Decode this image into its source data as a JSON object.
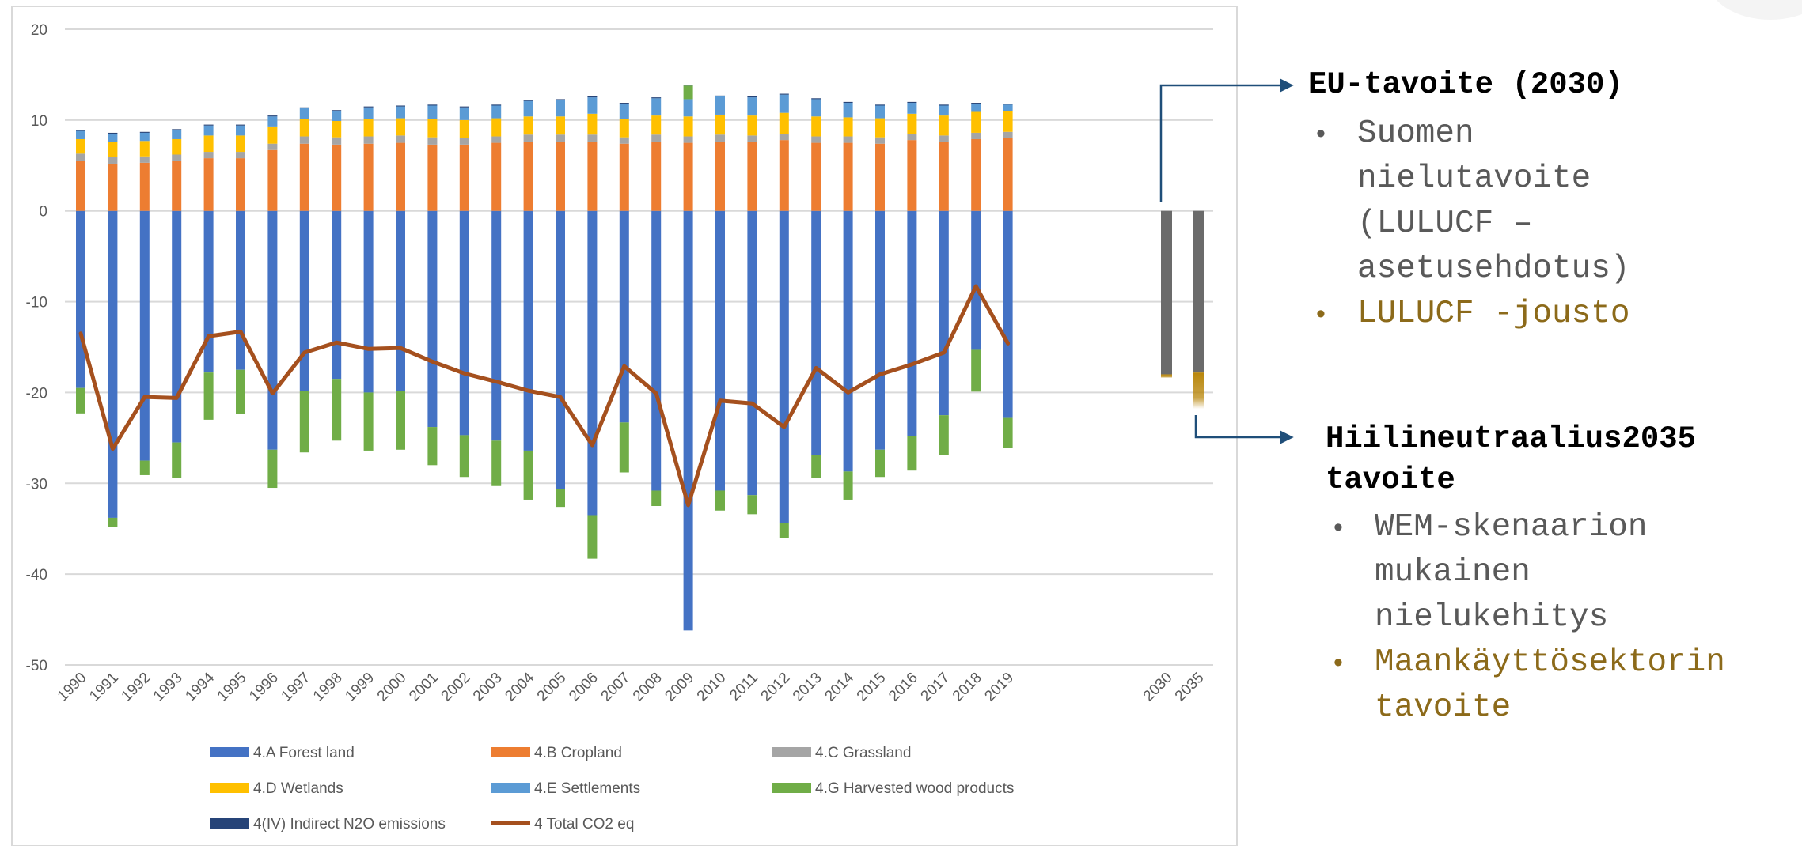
{
  "colors": {
    "forest": "#4472C4",
    "cropland": "#ED7D31",
    "grassland": "#A5A5A5",
    "wetlands": "#FFC000",
    "settlements": "#5B9BD5",
    "hwp": "#70AD47",
    "indirect_n2o": "#264478",
    "total": "#A5501E",
    "target_bar": "#6b6b6b",
    "target_flex": "#b8860b",
    "arrow": "#1f4e79",
    "grid": "#d9d9d9",
    "axis_text": "#595959"
  },
  "chart_data": {
    "type": "bar",
    "stacked": true,
    "ylim": [
      -50,
      20
    ],
    "yticks": [
      20,
      10,
      0,
      -10,
      -20,
      -30,
      -40,
      -50
    ],
    "grid": true,
    "legend_position": "bottom",
    "categories": [
      "1990",
      "1991",
      "1992",
      "1993",
      "1994",
      "1995",
      "1996",
      "1997",
      "1998",
      "1999",
      "2000",
      "2001",
      "2002",
      "2003",
      "2004",
      "2005",
      "2006",
      "2007",
      "2008",
      "2009",
      "2010",
      "2011",
      "2012",
      "2013",
      "2014",
      "2015",
      "2016",
      "2017",
      "2018",
      "2019"
    ],
    "series": [
      {
        "name": "4.A Forest land",
        "color_key": "forest",
        "values": [
          -19.5,
          -33.8,
          -27.5,
          -25.5,
          -17.8,
          -17.5,
          -26.3,
          -19.8,
          -18.5,
          -20,
          -19.8,
          -23.8,
          -24.7,
          -25.3,
          -26.4,
          -30.6,
          -33.5,
          -23.3,
          -30.8,
          -46.2,
          -30.8,
          -31.3,
          -34.4,
          -26.9,
          -28.7,
          -26.3,
          -24.8,
          -22.5,
          -15.3,
          -22.8
        ]
      },
      {
        "name": "4.B Cropland",
        "color_key": "cropland",
        "values": [
          5.5,
          5.2,
          5.3,
          5.5,
          5.8,
          5.8,
          6.7,
          7.4,
          7.3,
          7.4,
          7.5,
          7.3,
          7.3,
          7.5,
          7.6,
          7.6,
          7.6,
          7.4,
          7.6,
          7.5,
          7.6,
          7.6,
          7.8,
          7.5,
          7.5,
          7.4,
          7.8,
          7.6,
          7.9,
          8
        ]
      },
      {
        "name": "4.C Grassland",
        "color_key": "grassland",
        "values": [
          0.8,
          0.7,
          0.7,
          0.7,
          0.7,
          0.7,
          0.7,
          0.8,
          0.8,
          0.8,
          0.8,
          0.8,
          0.7,
          0.7,
          0.8,
          0.8,
          0.8,
          0.7,
          0.8,
          0.7,
          0.8,
          0.7,
          0.7,
          0.7,
          0.7,
          0.7,
          0.7,
          0.7,
          0.7,
          0.7
        ]
      },
      {
        "name": "4.D Wetlands",
        "color_key": "wetlands",
        "values": [
          1.6,
          1.7,
          1.7,
          1.7,
          1.8,
          1.8,
          1.9,
          1.9,
          1.8,
          1.9,
          1.9,
          2,
          2,
          2,
          2,
          2,
          2.3,
          2,
          2.1,
          2.2,
          2.2,
          2.2,
          2.3,
          2.2,
          2.1,
          2.1,
          2.2,
          2.2,
          2.3,
          2.3
        ]
      },
      {
        "name": "4.E Settlements",
        "color_key": "settlements",
        "values": [
          0.9,
          0.9,
          0.9,
          1,
          1.1,
          1.1,
          1.1,
          1.2,
          1.1,
          1.3,
          1.3,
          1.5,
          1.4,
          1.4,
          1.7,
          1.8,
          1.8,
          1.7,
          1.9,
          1.9,
          2,
          2,
          2,
          1.9,
          1.6,
          1.4,
          1.2,
          1.1,
          0.9,
          0.7
        ]
      },
      {
        "name": "4.G Harvested wood products",
        "color_key": "hwp",
        "values": [
          -2.8,
          -1,
          -1.6,
          -3.9,
          -5.2,
          -4.9,
          -4.2,
          -6.8,
          -6.8,
          -6.4,
          -6.5,
          -4.2,
          -4.6,
          -5,
          -5.4,
          -2,
          -4.8,
          -5.5,
          -1.7,
          1.5,
          -2.2,
          -2.1,
          -1.6,
          -2.5,
          -3.1,
          -3,
          -3.8,
          -4.4,
          -4.6,
          -3.3
        ]
      },
      {
        "name": "4(IV) Indirect N2O emissions",
        "color_key": "indirect_n2o",
        "values": [
          0.1,
          0.1,
          0.1,
          0.1,
          0.1,
          0.1,
          0.1,
          0.1,
          0.1,
          0.1,
          0.1,
          0.1,
          0.1,
          0.1,
          0.1,
          0.1,
          0.1,
          0.1,
          0.1,
          0.1,
          0.1,
          0.1,
          0.1,
          0.1,
          0.1,
          0.1,
          0.1,
          0.1,
          0.1,
          0.1
        ]
      }
    ],
    "line": {
      "name": "4 Total CO2 eq",
      "color_key": "total",
      "values": [
        -13.5,
        -26.2,
        -20.5,
        -20.6,
        -13.8,
        -13.3,
        -20.1,
        -15.6,
        -14.5,
        -15.2,
        -15.1,
        -16.6,
        -17.9,
        -18.8,
        -19.8,
        -20.5,
        -25.8,
        -17.1,
        -20.1,
        -32.4,
        -20.9,
        -21.2,
        -23.8,
        -17.3,
        -20,
        -18,
        -16.9,
        -15.6,
        -8.3,
        -14.6
      ]
    },
    "target_categories": [
      "2030",
      "2035"
    ],
    "targets": [
      {
        "category": "2030",
        "base": -18,
        "flex": -0.4
      },
      {
        "category": "2035",
        "base": -17.8,
        "flex": -4
      }
    ]
  },
  "legend": [
    {
      "label": "4.A Forest land",
      "color_key": "forest",
      "kind": "box"
    },
    {
      "label": "4.B Cropland",
      "color_key": "cropland",
      "kind": "box"
    },
    {
      "label": "4.C Grassland",
      "color_key": "grassland",
      "kind": "box"
    },
    {
      "label": "4.D Wetlands",
      "color_key": "wetlands",
      "kind": "box"
    },
    {
      "label": "4.E Settlements",
      "color_key": "settlements",
      "kind": "box"
    },
    {
      "label": "4.G Harvested wood products",
      "color_key": "hwp",
      "kind": "box"
    },
    {
      "label": "4(IV) Indirect N2O emissions",
      "color_key": "indirect_n2o",
      "kind": "box"
    },
    {
      "label": "4 Total CO2 eq",
      "color_key": "total",
      "kind": "line"
    }
  ],
  "annotations": {
    "eu": {
      "title": "EU-tavoite (2030)",
      "items": [
        {
          "text": "Suomen nielutavoite (LULUCF – asetusehdotus)",
          "lines": [
            "Suomen",
            "nielutavoite",
            "(LULUCF –",
            "asetusehdotus)"
          ],
          "tone": "grey"
        },
        {
          "text": "LULUCF -jousto",
          "lines": [
            "LULUCF -jousto"
          ],
          "tone": "gold"
        }
      ]
    },
    "hn": {
      "title_lines": [
        "Hiilineutraalius2035",
        "tavoite"
      ],
      "items": [
        {
          "text": "WEM-skenaarion mukainen nielukehitys",
          "lines": [
            "WEM-skenaarion",
            "mukainen",
            "nielukehitys"
          ],
          "tone": "grey"
        },
        {
          "text": "Maankäyttösektorin tavoite",
          "lines": [
            "Maankäyttösektorin",
            "tavoite"
          ],
          "tone": "gold"
        }
      ]
    }
  }
}
